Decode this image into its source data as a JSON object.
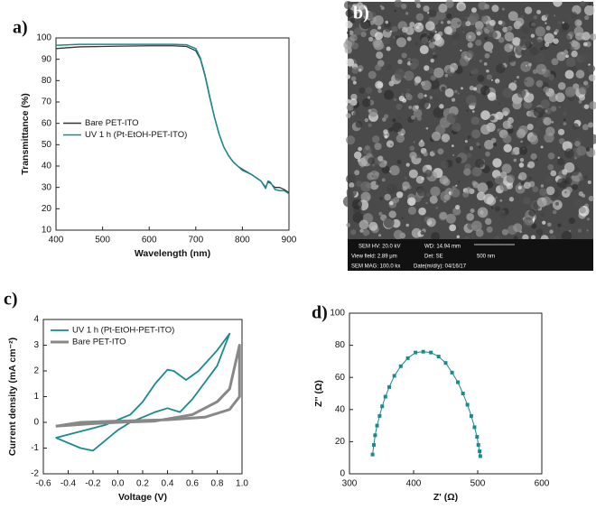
{
  "chart_data": [
    {
      "type": "line",
      "panel_label": "a)",
      "xlabel": "Wavelength (nm)",
      "ylabel": "Transmittance (%)",
      "x": [
        400,
        450,
        500,
        600,
        650,
        680,
        700,
        710,
        720,
        730,
        740,
        750,
        760,
        770,
        780,
        790,
        800,
        820,
        840,
        850,
        855,
        860,
        870,
        880,
        890,
        900
      ],
      "series": [
        {
          "name": "Bare PET-ITO",
          "color": "#333333",
          "linewidth": 1.3,
          "values": [
            95,
            95.8,
            96,
            96.3,
            96.3,
            96,
            94,
            90,
            82,
            72,
            63,
            55,
            49,
            45,
            42,
            40,
            38.5,
            36,
            33,
            30,
            32.5,
            32,
            30,
            30,
            29,
            27.5
          ]
        },
        {
          "name": "UV 1 h (Pt-EtOH-PET-ITO)",
          "color": "#1a8a8a",
          "linewidth": 1.5,
          "values": [
            96.5,
            97,
            97,
            97,
            97,
            96.8,
            95,
            90.5,
            82.5,
            72.5,
            63,
            55,
            49,
            45,
            42,
            40,
            38,
            36,
            33,
            29.5,
            33,
            32.5,
            29,
            28.5,
            28.5,
            27
          ]
        }
      ],
      "xlim": [
        400,
        900
      ],
      "xticks": [
        400,
        500,
        600,
        700,
        800,
        900
      ],
      "ylim": [
        10,
        100
      ],
      "yticks": [
        10,
        20,
        30,
        40,
        50,
        60,
        70,
        80,
        90,
        100
      ],
      "legend": "center left"
    },
    {
      "type": "line",
      "panel_label": "c)",
      "xlabel": "Voltage (V)",
      "ylabel": "Current density (mA cm⁻²)",
      "series": [
        {
          "name": "UV 1 h (Pt-EtOH-PET-ITO)",
          "color": "#1a8a8a",
          "linewidth": 1.8,
          "x": [
            -0.5,
            -0.3,
            -0.1,
            0.1,
            0.2,
            0.3,
            0.4,
            0.45,
            0.55,
            0.65,
            0.8,
            0.9,
            0.8,
            0.6,
            0.5,
            0.4,
            0.3,
            0.2,
            0.1,
            0.0,
            -0.1,
            -0.2,
            -0.3,
            -0.5
          ],
          "values": [
            -0.6,
            -0.35,
            -0.1,
            0.3,
            0.8,
            1.5,
            2.05,
            2.0,
            1.65,
            2.0,
            2.8,
            3.45,
            2.2,
            0.9,
            0.4,
            0.55,
            0.4,
            0.2,
            0.0,
            -0.3,
            -0.7,
            -1.1,
            -1.0,
            -0.6
          ]
        },
        {
          "name": "Bare PET-ITO",
          "color": "#888888",
          "linewidth": 3,
          "x": [
            -0.5,
            -0.2,
            0,
            0.3,
            0.6,
            0.8,
            0.9,
            0.98,
            0.98,
            0.9,
            0.7,
            0.4,
            0,
            -0.3,
            -0.5
          ],
          "values": [
            -0.15,
            -0.05,
            0.0,
            0.05,
            0.3,
            0.8,
            1.3,
            3.0,
            1.0,
            0.5,
            0.2,
            0.1,
            0.05,
            0,
            -0.15
          ]
        }
      ],
      "xlim": [
        -0.6,
        1.0
      ],
      "xticks": [
        -0.6,
        -0.4,
        -0.2,
        {
          "value": 0,
          "label": "0.0"
        },
        0.2,
        0.4,
        0.6,
        0.8,
        {
          "value": 1,
          "label": "1.0"
        }
      ],
      "ylim": [
        -2,
        4
      ],
      "yticks": [
        -2,
        -1,
        0,
        1,
        2,
        3,
        4
      ],
      "legend": "upper left"
    },
    {
      "type": "scatter",
      "panel_label": "d)",
      "xlabel": "Z' (Ω)",
      "ylabel": "Z'' (Ω)",
      "connect": true,
      "marker": "square",
      "series": [
        {
          "color": "#1a8a8a",
          "x": [
            336,
            338,
            340,
            343,
            347,
            351,
            356,
            362,
            370,
            380,
            391,
            403,
            415,
            427,
            439,
            450,
            460,
            469,
            477,
            484,
            490,
            495,
            499,
            501,
            503,
            504
          ],
          "values": [
            12,
            18,
            24,
            30,
            36,
            42,
            48,
            54,
            61,
            67,
            72,
            75.5,
            76,
            75.5,
            73,
            69,
            63,
            57,
            50,
            43,
            36,
            29,
            23,
            18,
            14,
            11
          ]
        }
      ],
      "xlim": [
        300,
        600
      ],
      "xticks": [
        300,
        400,
        500,
        600
      ],
      "ylim": [
        0,
        100
      ],
      "yticks": [
        0,
        20,
        40,
        60,
        80,
        100
      ]
    }
  ],
  "image_panel": {
    "panel_label": "b)",
    "info": [
      "SEM HV: 20.0 kV",
      "WD: 14.94 mm",
      "View field: 2.89 μm",
      "Det: SE",
      "500 nm",
      "SEM MAG: 100.0 kx",
      "Date(m/d/y): 04/16/17"
    ]
  }
}
